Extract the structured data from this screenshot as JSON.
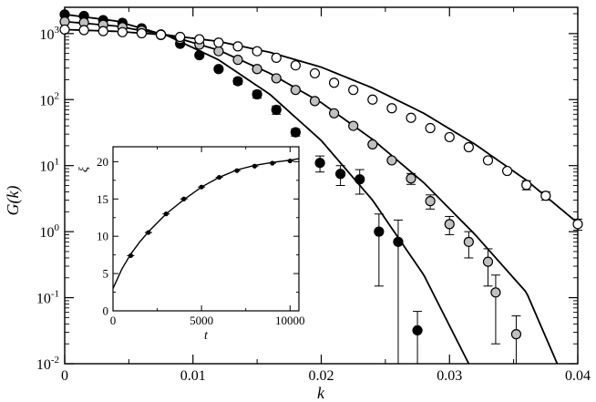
{
  "chart_data": [
    {
      "type": "scatter",
      "xlabel": "k",
      "ylabel": "G(k)",
      "xlim": [
        0,
        0.04
      ],
      "ylim": [
        0.01,
        2500
      ],
      "yscale": "log",
      "x_ticks": [
        {
          "value": 0,
          "label": "0"
        },
        {
          "value": 0.01,
          "label": "0.01"
        },
        {
          "value": 0.02,
          "label": "0.02"
        },
        {
          "value": 0.03,
          "label": "0.03"
        },
        {
          "value": 0.04,
          "label": "0.04"
        }
      ],
      "y_ticks": [
        {
          "value": 0.01,
          "base": "10",
          "exp": "-2"
        },
        {
          "value": 0.1,
          "base": "10",
          "exp": "-1"
        },
        {
          "value": 1,
          "base": "10",
          "exp": "0"
        },
        {
          "value": 10,
          "base": "10",
          "exp": "1"
        },
        {
          "value": 100,
          "base": "10",
          "exp": "2"
        },
        {
          "value": 1000,
          "base": "10",
          "exp": "3"
        }
      ],
      "grid": false,
      "series": [
        {
          "marker": "filled-circle",
          "fill": "#000000",
          "x": [
            0,
            0.0015,
            0.003,
            0.0045,
            0.006,
            0.0075,
            0.009,
            0.0105,
            0.012,
            0.0135,
            0.015,
            0.0165,
            0.018,
            0.0199,
            0.0215,
            0.023,
            0.0245,
            0.026,
            0.0275
          ],
          "y": [
            1950,
            1850,
            1600,
            1450,
            1200,
            950,
            700,
            470,
            290,
            190,
            120,
            70,
            32,
            11,
            7.5,
            6.2,
            1.0,
            0.7,
            0.032
          ],
          "err": [
            0,
            0,
            0,
            0,
            0,
            0,
            0,
            0,
            0,
            20,
            15,
            10,
            4,
            3,
            2.5,
            2.5,
            0.85,
            0.8,
            0.03
          ],
          "fit_k": [
            0,
            0.004,
            0.008,
            0.012,
            0.016,
            0.02,
            0.024,
            0.028,
            0.0315
          ],
          "fit_G": [
            1950,
            1550,
            930,
            400,
            120,
            24,
            3,
            0.22,
            0.01
          ]
        },
        {
          "marker": "grey-circle",
          "fill": "#c0c0c0",
          "x": [
            0,
            0.0015,
            0.003,
            0.0045,
            0.006,
            0.0075,
            0.009,
            0.0105,
            0.012,
            0.0135,
            0.015,
            0.0165,
            0.018,
            0.0195,
            0.021,
            0.0225,
            0.024,
            0.0255,
            0.027,
            0.0285,
            0.03,
            0.0315,
            0.033,
            0.0336,
            0.0352
          ],
          "y": [
            1520,
            1470,
            1360,
            1250,
            1110,
            970,
            830,
            680,
            540,
            400,
            290,
            210,
            140,
            95,
            62,
            40,
            21,
            12,
            6.4,
            2.9,
            1.3,
            0.7,
            0.35,
            0.12,
            0.028
          ],
          "err": [
            0,
            0,
            0,
            0,
            0,
            0,
            0,
            0,
            0,
            0,
            0,
            0,
            0,
            0,
            0,
            0,
            0,
            0,
            1.2,
            0.7,
            0.4,
            0.3,
            0.2,
            0.1,
            0.025
          ],
          "fit_k": [
            0,
            0.004,
            0.008,
            0.012,
            0.016,
            0.02,
            0.024,
            0.028,
            0.032,
            0.036,
            0.0384
          ],
          "fit_G": [
            1520,
            1300,
            950,
            560,
            250,
            90,
            25,
            5.5,
            0.9,
            0.12,
            0.01
          ]
        },
        {
          "marker": "open-circle",
          "fill": "#ffffff",
          "x": [
            0,
            0.0015,
            0.003,
            0.0045,
            0.006,
            0.0075,
            0.009,
            0.0105,
            0.012,
            0.0135,
            0.015,
            0.0165,
            0.018,
            0.0195,
            0.021,
            0.0225,
            0.024,
            0.0255,
            0.027,
            0.0285,
            0.03,
            0.0315,
            0.033,
            0.0345,
            0.036,
            0.0375,
            0.04
          ],
          "y": [
            1150,
            1130,
            1090,
            1050,
            1010,
            960,
            890,
            820,
            730,
            640,
            540,
            430,
            330,
            250,
            180,
            140,
            100,
            74,
            53,
            37,
            27,
            19,
            12,
            8.3,
            5.1,
            3.5,
            1.3
          ],
          "err": [
            0,
            0,
            0,
            0,
            0,
            0,
            0,
            0,
            0,
            0,
            0,
            0,
            0,
            0,
            0,
            0,
            0,
            0,
            0,
            0,
            0,
            0,
            0,
            0,
            0.8,
            0.5,
            0.25
          ],
          "fit_k": [
            0,
            0.004,
            0.008,
            0.012,
            0.016,
            0.02,
            0.024,
            0.028,
            0.032,
            0.036,
            0.04
          ],
          "fit_G": [
            1150,
            1080,
            950,
            760,
            520,
            310,
            150,
            62,
            21,
            6,
            1.35
          ]
        }
      ]
    },
    {
      "type": "scatter",
      "role": "inset",
      "xlabel": "t",
      "ylabel": "ξ",
      "xlim": [
        0,
        10500
      ],
      "ylim": [
        0,
        22
      ],
      "x_ticks": [
        {
          "value": 0,
          "label": "0"
        },
        {
          "value": 5000,
          "label": "5000"
        },
        {
          "value": 10000,
          "label": "10000"
        }
      ],
      "y_ticks": [
        {
          "value": 0,
          "label": "0"
        },
        {
          "value": 5,
          "label": "5"
        },
        {
          "value": 10,
          "label": "10"
        },
        {
          "value": 15,
          "label": "15"
        },
        {
          "value": 20,
          "label": "20"
        }
      ],
      "points": {
        "x": [
          1000,
          2000,
          3000,
          4000,
          5000,
          6000,
          7000,
          8000,
          9000,
          10000
        ],
        "y": [
          7.4,
          10.5,
          13.0,
          15.0,
          16.6,
          17.9,
          18.8,
          19.4,
          19.8,
          20.1
        ]
      },
      "fit": {
        "x": [
          0,
          500,
          1000,
          1500,
          2000,
          3000,
          4000,
          5000,
          6000,
          7000,
          8000,
          9000,
          10000,
          10500
        ],
        "y": [
          3.0,
          5.6,
          7.6,
          9.2,
          10.6,
          13.0,
          14.9,
          16.6,
          17.9,
          18.9,
          19.5,
          19.9,
          20.2,
          20.4
        ]
      }
    }
  ]
}
